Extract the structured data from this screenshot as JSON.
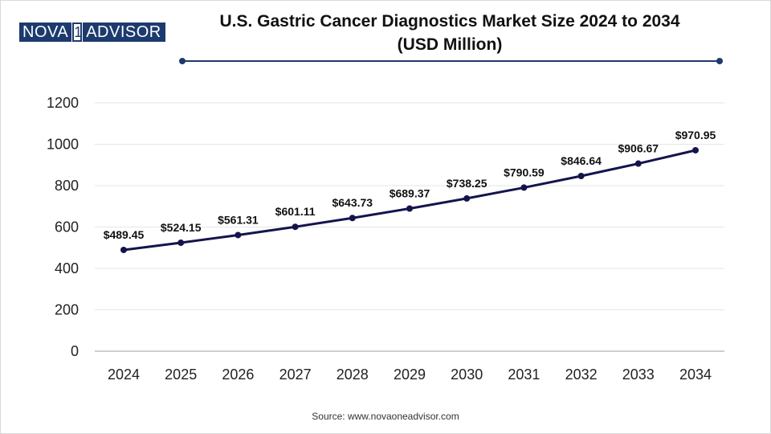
{
  "brand": {
    "logo_left": "NOVA",
    "logo_middle": "1",
    "logo_right": "ADVISOR"
  },
  "title_line1": "U.S. Gastric Cancer Diagnostics Market Size 2024 to 2034",
  "title_line2": "(USD Million)",
  "source": "Source: www.novaoneadvisor.com",
  "colors": {
    "line": "#14144d",
    "accent": "#1d3a6e",
    "grid": "#e6e6e6",
    "axis": "#bfbfbf"
  },
  "chart_data": {
    "type": "line",
    "title": "U.S. Gastric Cancer Diagnostics Market Size 2024 to 2034 (USD Million)",
    "xlabel": "",
    "ylabel": "",
    "categories": [
      "2024",
      "2025",
      "2026",
      "2027",
      "2028",
      "2029",
      "2030",
      "2031",
      "2032",
      "2033",
      "2034"
    ],
    "values": [
      489.45,
      524.15,
      561.31,
      601.11,
      643.73,
      689.37,
      738.25,
      790.59,
      846.64,
      906.67,
      970.95
    ],
    "labels": [
      "$489.45",
      "$524.15",
      "$561.31",
      "$601.11",
      "$643.73",
      "$689.37",
      "$738.25",
      "$790.59",
      "$846.64",
      "$906.67",
      "$970.95"
    ],
    "ylim": [
      0,
      1200
    ],
    "yticks": [
      "0",
      "200",
      "400",
      "600",
      "800",
      "1000",
      "1200"
    ],
    "grid": true,
    "legend": "none"
  }
}
